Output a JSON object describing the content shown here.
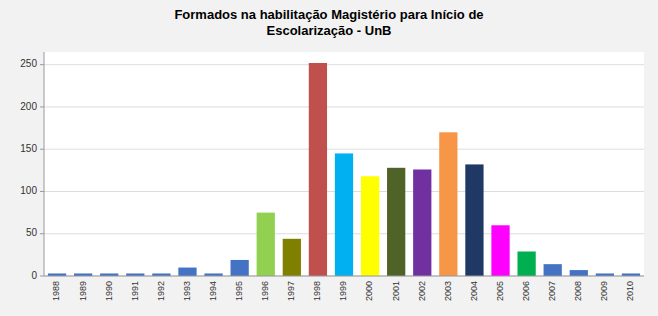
{
  "chart_data": {
    "type": "bar",
    "title": "Formados na habilitação Magistério para Início de\nEscolarização - UnB",
    "categories": [
      "1988",
      "1989",
      "1990",
      "1991",
      "1992",
      "1993",
      "1994",
      "1995",
      "1996",
      "1997",
      "1998",
      "1999",
      "2000",
      "2001",
      "2002",
      "2003",
      "2004",
      "2005",
      "2006",
      "2007",
      "2008",
      "2009",
      "2010"
    ],
    "values": [
      3,
      3,
      3,
      3,
      3,
      10,
      3,
      19,
      75,
      44,
      252,
      145,
      118,
      128,
      126,
      170,
      132,
      60,
      29,
      14,
      7,
      3,
      3
    ],
    "colors": [
      "#4472C4",
      "#4472C4",
      "#4472C4",
      "#4472C4",
      "#4472C4",
      "#4472C4",
      "#4472C4",
      "#4472C4",
      "#92D050",
      "#808000",
      "#C0504D",
      "#00B0F0",
      "#FFFF00",
      "#4F6228",
      "#7030A0",
      "#F79646",
      "#1F3864",
      "#FF00FF",
      "#00B050",
      "#4472C4",
      "#4472C4",
      "#4472C4",
      "#4472C4"
    ],
    "ylim": [
      0,
      265
    ],
    "yticks": [
      0,
      50,
      100,
      150,
      200,
      250
    ],
    "grid": true
  }
}
